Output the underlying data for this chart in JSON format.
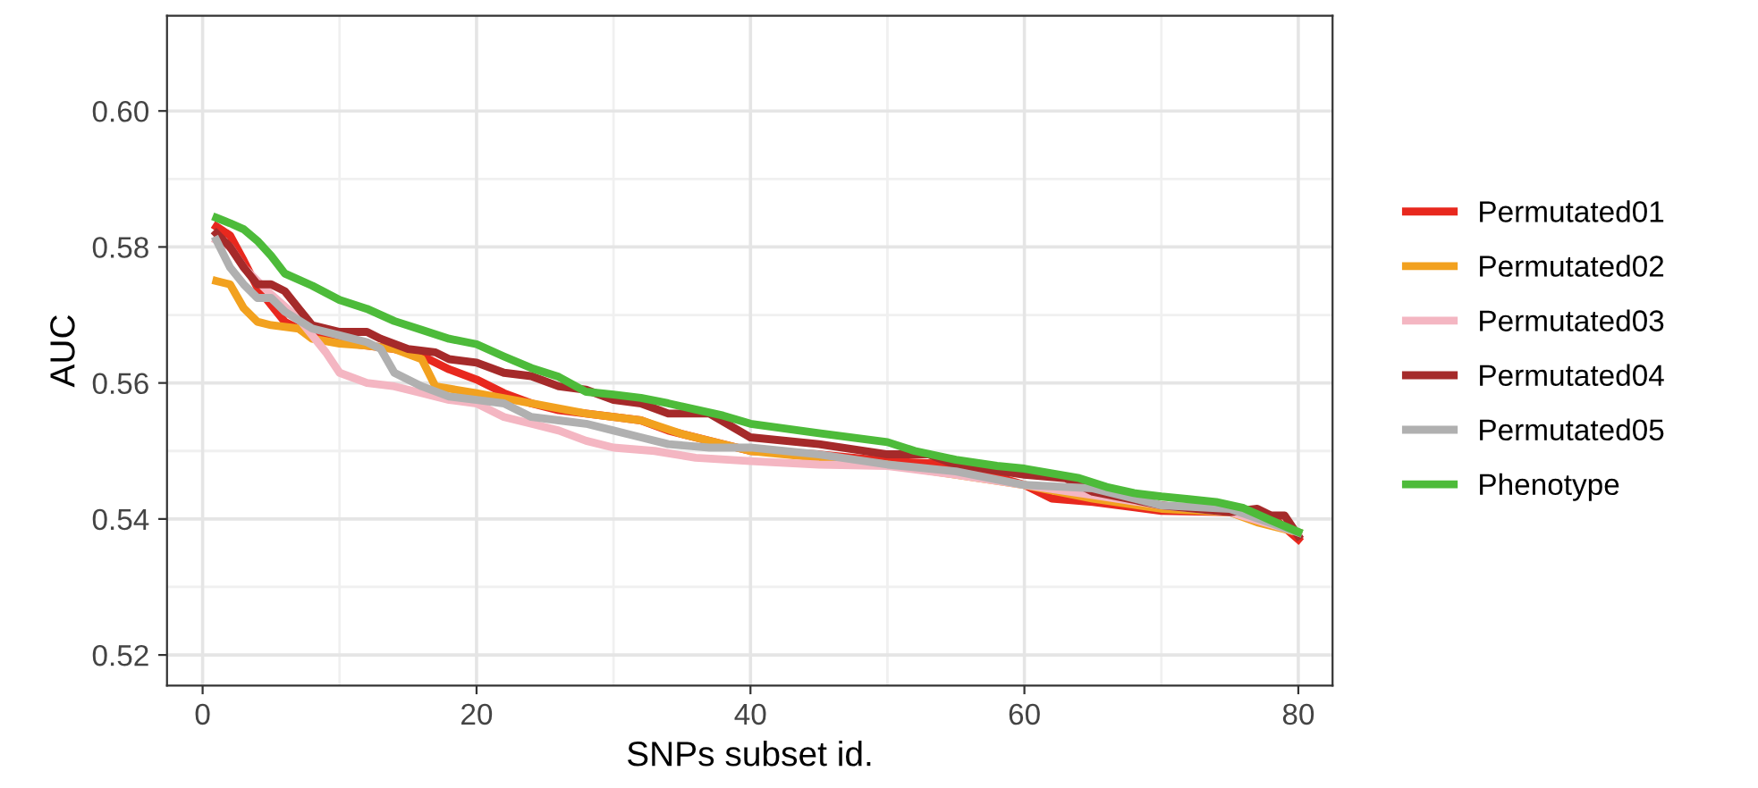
{
  "chart_data": {
    "type": "line",
    "xlabel": "SNPs subset id.",
    "ylabel": "AUC",
    "xlim": [
      -2.6,
      82.5
    ],
    "ylim": [
      0.5155,
      0.614
    ],
    "xticks": [
      0,
      20,
      40,
      60,
      80
    ],
    "yticks": [
      {
        "value": 0.52,
        "label": "0.52"
      },
      {
        "value": 0.54,
        "label": "0.54"
      },
      {
        "value": 0.56,
        "label": "0.56"
      },
      {
        "value": 0.58,
        "label": "0.58"
      },
      {
        "value": 0.6,
        "label": "0.60"
      }
    ],
    "grid": true,
    "legend": "right",
    "marker": "none",
    "line_style": "solid",
    "series": [
      {
        "name": "Permutated01",
        "color": "#e8281e",
        "x": [
          1,
          2,
          3,
          4,
          5,
          6,
          8,
          10,
          12,
          14,
          16,
          18,
          20,
          22,
          24,
          26,
          28,
          30,
          32,
          34,
          40,
          45,
          50,
          55,
          60,
          62,
          65,
          70,
          75,
          78,
          80
        ],
        "values": [
          0.583,
          0.5817,
          0.578,
          0.574,
          0.5715,
          0.569,
          0.567,
          0.566,
          0.5655,
          0.565,
          0.564,
          0.562,
          0.5605,
          0.5585,
          0.557,
          0.556,
          0.5555,
          0.555,
          0.5545,
          0.553,
          0.55,
          0.5495,
          0.5485,
          0.548,
          0.545,
          0.543,
          0.5425,
          0.5412,
          0.541,
          0.5405,
          0.537
        ]
      },
      {
        "name": "Permutated02",
        "color": "#f2a11f",
        "x": [
          1,
          2,
          3,
          4,
          5,
          7,
          8,
          10,
          12,
          14,
          16,
          17,
          20,
          24,
          28,
          32,
          35,
          40,
          45,
          50,
          55,
          60,
          65,
          70,
          75,
          77,
          80
        ],
        "values": [
          0.575,
          0.5745,
          0.571,
          0.569,
          0.5685,
          0.568,
          0.5665,
          0.5658,
          0.5655,
          0.565,
          0.5635,
          0.5595,
          0.5585,
          0.557,
          0.5555,
          0.5545,
          0.5525,
          0.55,
          0.549,
          0.548,
          0.5465,
          0.545,
          0.543,
          0.5415,
          0.541,
          0.5395,
          0.538
        ]
      },
      {
        "name": "Permutated03",
        "color": "#f4b6c2",
        "x": [
          1,
          2,
          3,
          5,
          7,
          9,
          10,
          12,
          14,
          16,
          18,
          20,
          22,
          24,
          26,
          28,
          30,
          33,
          36,
          40,
          45,
          50,
          55,
          60,
          65,
          70,
          75,
          80
        ],
        "values": [
          0.581,
          0.58,
          0.577,
          0.573,
          0.5695,
          0.5645,
          0.5615,
          0.56,
          0.5595,
          0.5585,
          0.5575,
          0.557,
          0.555,
          0.554,
          0.553,
          0.5515,
          0.5505,
          0.55,
          0.549,
          0.5485,
          0.548,
          0.5478,
          0.5465,
          0.545,
          0.5435,
          0.542,
          0.541,
          0.538
        ]
      },
      {
        "name": "Permutated04",
        "color": "#a52a2a",
        "x": [
          1,
          2,
          3,
          4,
          5,
          6,
          7,
          8,
          10,
          12,
          13,
          15,
          17,
          18,
          20,
          22,
          24,
          26,
          28,
          30,
          32,
          34,
          37,
          40,
          45,
          50,
          53,
          55,
          60,
          63,
          65,
          70,
          75,
          77,
          78,
          79,
          80
        ],
        "values": [
          0.582,
          0.58,
          0.577,
          0.5745,
          0.5745,
          0.5735,
          0.571,
          0.5685,
          0.5675,
          0.5675,
          0.5665,
          0.565,
          0.5645,
          0.5635,
          0.563,
          0.5615,
          0.561,
          0.5595,
          0.559,
          0.5575,
          0.557,
          0.5555,
          0.5555,
          0.552,
          0.551,
          0.5495,
          0.5495,
          0.548,
          0.5465,
          0.546,
          0.544,
          0.542,
          0.541,
          0.5415,
          0.5405,
          0.5405,
          0.5375
        ]
      },
      {
        "name": "Permutated05",
        "color": "#b0b0b0",
        "x": [
          1,
          2,
          3,
          4,
          5,
          6,
          8,
          10,
          12,
          13,
          14,
          16,
          18,
          20,
          22,
          24,
          26,
          28,
          30,
          32,
          34,
          37,
          40,
          45,
          50,
          55,
          60,
          65,
          70,
          75,
          80
        ],
        "values": [
          0.581,
          0.577,
          0.5745,
          0.5725,
          0.5725,
          0.5705,
          0.568,
          0.567,
          0.566,
          0.565,
          0.5615,
          0.5595,
          0.558,
          0.5575,
          0.557,
          0.555,
          0.5545,
          0.554,
          0.553,
          0.552,
          0.551,
          0.5505,
          0.5505,
          0.5495,
          0.548,
          0.547,
          0.545,
          0.5445,
          0.542,
          0.5415,
          0.538
        ]
      },
      {
        "name": "Phenotype",
        "color": "#4dbb3a",
        "x": [
          1,
          2,
          3,
          4,
          5,
          6,
          8,
          10,
          12,
          14,
          16,
          18,
          20,
          22,
          24,
          26,
          28,
          30,
          32,
          34,
          36,
          38,
          40,
          45,
          50,
          52,
          55,
          58,
          60,
          62,
          64,
          66,
          68,
          70,
          72,
          74,
          76,
          78,
          80
        ],
        "values": [
          0.5843,
          0.5835,
          0.5826,
          0.5809,
          0.5787,
          0.5761,
          0.5743,
          0.5722,
          0.5709,
          0.5691,
          0.5678,
          0.5665,
          0.5657,
          0.5639,
          0.5622,
          0.5609,
          0.5587,
          0.5583,
          0.5578,
          0.557,
          0.5561,
          0.5552,
          0.554,
          0.5526,
          0.5513,
          0.55,
          0.5487,
          0.5478,
          0.5474,
          0.5467,
          0.546,
          0.5447,
          0.5438,
          0.5433,
          0.5429,
          0.5425,
          0.5416,
          0.5398,
          0.5381
        ]
      }
    ]
  }
}
